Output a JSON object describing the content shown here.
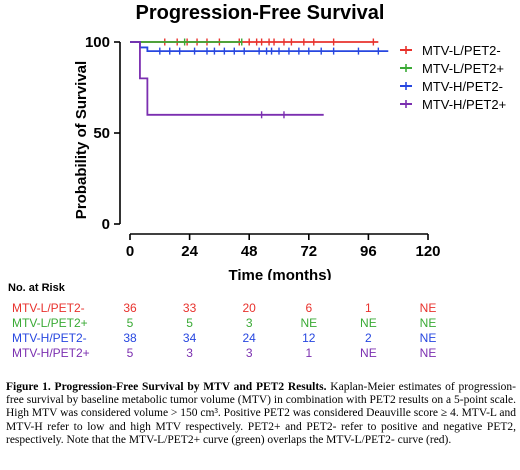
{
  "chart_data": {
    "type": "line",
    "title": "Progression-Free Survival",
    "xlabel": "Time (months)",
    "ylabel": "Probability of Survival",
    "xlim": [
      0,
      120
    ],
    "ylim": [
      0,
      100
    ],
    "xticks": [
      0,
      24,
      48,
      72,
      96,
      120
    ],
    "yticks": [
      0,
      50,
      100
    ],
    "legend_position": "right",
    "series": [
      {
        "name": "MTV-L/PET2-",
        "color": "#e8322d",
        "steps": [
          [
            0,
            100
          ],
          [
            100,
            100
          ]
        ],
        "censors": [
          14,
          19,
          23,
          27,
          31,
          36,
          44,
          48,
          51,
          53,
          56,
          58,
          62,
          65,
          70,
          74,
          82,
          98
        ]
      },
      {
        "name": "MTV-L/PET2+",
        "color": "#3aaa35",
        "steps": [
          [
            0,
            100
          ],
          [
            45,
            100
          ]
        ],
        "censors": [
          22,
          45
        ]
      },
      {
        "name": "MTV-H/PET2-",
        "color": "#2747e0",
        "steps": [
          [
            0,
            100
          ],
          [
            4,
            100
          ],
          [
            4,
            97
          ],
          [
            7,
            97
          ],
          [
            7,
            95
          ],
          [
            104,
            95
          ]
        ],
        "censors": [
          12,
          16,
          20,
          26,
          31,
          34,
          38,
          42,
          46,
          52,
          55,
          57,
          60,
          64,
          68,
          72,
          77,
          82,
          92,
          100
        ]
      },
      {
        "name": "MTV-H/PET2+",
        "color": "#7b2fb0",
        "steps": [
          [
            0,
            100
          ],
          [
            4,
            100
          ],
          [
            4,
            80
          ],
          [
            7,
            80
          ],
          [
            7,
            60
          ],
          [
            78,
            60
          ]
        ],
        "censors": [
          53,
          62
        ]
      }
    ],
    "risk_table": {
      "heading": "No. at Risk",
      "rows": [
        {
          "label": "MTV-L/PET2-",
          "color": "#e8322d",
          "values": [
            "36",
            "33",
            "20",
            "6",
            "1",
            "NE"
          ]
        },
        {
          "label": "MTV-L/PET2+",
          "color": "#3aaa35",
          "values": [
            "5",
            "5",
            "3",
            "NE",
            "NE",
            "NE"
          ]
        },
        {
          "label": "MTV-H/PET2-",
          "color": "#2747e0",
          "values": [
            "38",
            "34",
            "24",
            "12",
            "2",
            "NE"
          ]
        },
        {
          "label": "MTV-H/PET2+",
          "color": "#7b2fb0",
          "values": [
            "5",
            "3",
            "3",
            "1",
            "NE",
            "NE"
          ]
        }
      ]
    }
  },
  "caption": {
    "bold": "Figure 1. Progression-Free Survival by MTV and PET2 Results.",
    "text": " Kaplan-Meier estimates of progression-free survival by baseline metabolic tumor volume (MTV) in combination with PET2 results on a 5-point scale.  High MTV was considered volume > 150 cm³.  Positive PET2 was considered Deauville score ≥ 4.  MTV-L and MTV-H refer to low and high MTV respectively.  PET2+ and PET2- refer to positive and negative PET2, respectively.  Note that the MTV-L/PET2+ curve (green) overlaps the MTV-L/PET2- curve (red)."
  }
}
